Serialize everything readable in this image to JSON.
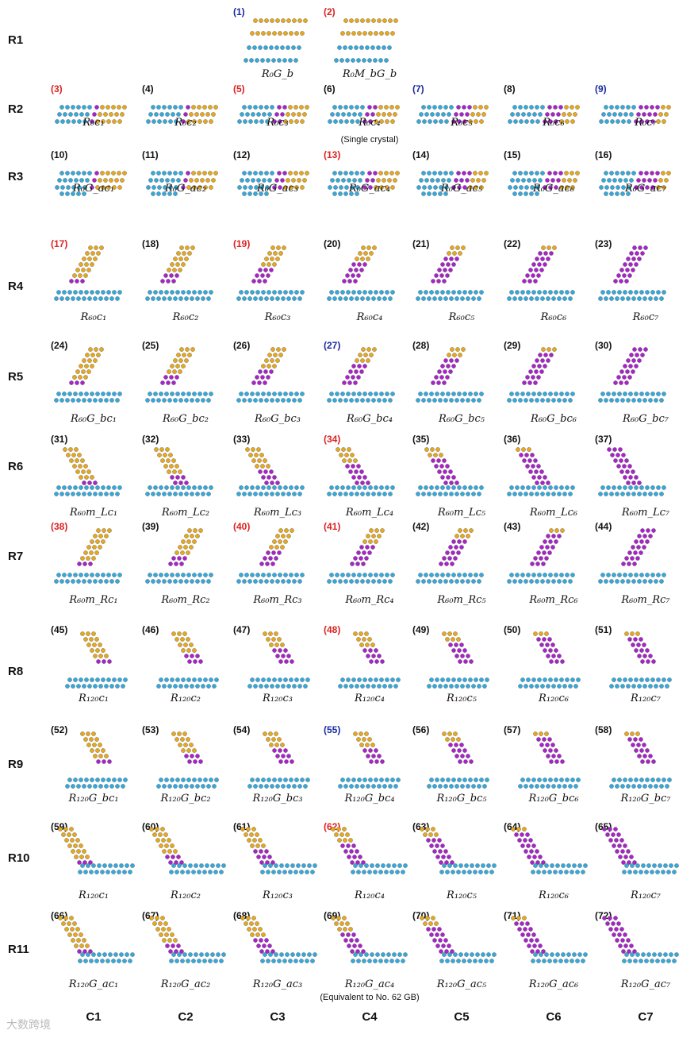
{
  "colors": {
    "matrix": "#33aadd",
    "grain": "#e8a81a",
    "boundary": "#aa22cc",
    "label_red": "#dd2222",
    "label_blue": "#1a2aa0",
    "label_black": "#111111"
  },
  "rows": [
    "R1",
    "R2",
    "R3",
    "R4",
    "R5",
    "R6",
    "R7",
    "R8",
    "R9",
    "R10",
    "R11"
  ],
  "columns": [
    "C1",
    "C2",
    "C3",
    "C4",
    "C5",
    "C6",
    "C7"
  ],
  "watermark": "大数跨境",
  "notes": {
    "single_crystal": "(Single crystal)",
    "equivalent": "(Equivalent  to No. 62 GB)"
  },
  "structures": [
    {
      "n": "(1)",
      "c": "blue",
      "cap": "R₀G_b"
    },
    {
      "n": "(2)",
      "c": "red",
      "cap": "R₀M_bG_b"
    },
    {
      "n": "(3)",
      "c": "red",
      "cap": "R₀c₁"
    },
    {
      "n": "(4)",
      "c": "black",
      "cap": "R₀c₂"
    },
    {
      "n": "(5)",
      "c": "red",
      "cap": "R₀c₃"
    },
    {
      "n": "(6)",
      "c": "black",
      "cap": "R₀c₄"
    },
    {
      "n": "(7)",
      "c": "blue",
      "cap": "R₀c₅"
    },
    {
      "n": "(8)",
      "c": "black",
      "cap": "R₀c₆"
    },
    {
      "n": "(9)",
      "c": "blue",
      "cap": "R₀c₇"
    },
    {
      "n": "(10)",
      "c": "black",
      "cap": "R₀G_ac₁"
    },
    {
      "n": "(11)",
      "c": "black",
      "cap": "R₀G_ac₂"
    },
    {
      "n": "(12)",
      "c": "black",
      "cap": "R₀G_ac₃"
    },
    {
      "n": "(13)",
      "c": "red",
      "cap": "R₀G_ac₄"
    },
    {
      "n": "(14)",
      "c": "black",
      "cap": "R₀G_ac₅"
    },
    {
      "n": "(15)",
      "c": "black",
      "cap": "R₀G_ac₆"
    },
    {
      "n": "(16)",
      "c": "black",
      "cap": "R₀G_ac₇"
    },
    {
      "n": "(17)",
      "c": "red",
      "cap": "R₆₀c₁"
    },
    {
      "n": "(18)",
      "c": "black",
      "cap": "R₆₀c₂"
    },
    {
      "n": "(19)",
      "c": "red",
      "cap": "R₆₀c₃"
    },
    {
      "n": "(20)",
      "c": "black",
      "cap": "R₆₀c₄"
    },
    {
      "n": "(21)",
      "c": "black",
      "cap": "R₆₀c₅"
    },
    {
      "n": "(22)",
      "c": "black",
      "cap": "R₆₀c₆"
    },
    {
      "n": "(23)",
      "c": "black",
      "cap": "R₆₀c₇"
    },
    {
      "n": "(24)",
      "c": "black",
      "cap": "R₆₀G_bc₁"
    },
    {
      "n": "(25)",
      "c": "black",
      "cap": "R₆₀G_bc₂"
    },
    {
      "n": "(26)",
      "c": "black",
      "cap": "R₆₀G_bc₃"
    },
    {
      "n": "(27)",
      "c": "blue",
      "cap": "R₆₀G_bc₄"
    },
    {
      "n": "(28)",
      "c": "black",
      "cap": "R₆₀G_bc₅"
    },
    {
      "n": "(29)",
      "c": "black",
      "cap": "R₆₀G_bc₆"
    },
    {
      "n": "(30)",
      "c": "black",
      "cap": "R₆₀G_bc₇"
    },
    {
      "n": "(31)",
      "c": "black",
      "cap": "R₆₀m_Lc₁"
    },
    {
      "n": "(32)",
      "c": "black",
      "cap": "R₆₀m_Lc₂"
    },
    {
      "n": "(33)",
      "c": "black",
      "cap": "R₆₀m_Lc₃"
    },
    {
      "n": "(34)",
      "c": "red",
      "cap": "R₆₀m_Lc₄"
    },
    {
      "n": "(35)",
      "c": "black",
      "cap": "R₆₀m_Lc₅"
    },
    {
      "n": "(36)",
      "c": "black",
      "cap": "R₆₀m_Lc₆"
    },
    {
      "n": "(37)",
      "c": "black",
      "cap": "R₆₀m_Lc₇"
    },
    {
      "n": "(38)",
      "c": "red",
      "cap": "R₆₀m_Rc₁"
    },
    {
      "n": "(39)",
      "c": "black",
      "cap": "R₆₀m_Rc₂"
    },
    {
      "n": "(40)",
      "c": "red",
      "cap": "R₆₀m_Rc₃"
    },
    {
      "n": "(41)",
      "c": "red",
      "cap": "R₆₀m_Rc₄"
    },
    {
      "n": "(42)",
      "c": "black",
      "cap": "R₆₀m_Rc₅"
    },
    {
      "n": "(43)",
      "c": "black",
      "cap": "R₆₀m_Rc₆"
    },
    {
      "n": "(44)",
      "c": "black",
      "cap": "R₆₀m_Rc₇"
    },
    {
      "n": "(45)",
      "c": "black",
      "cap": "R₁₂₀c₁"
    },
    {
      "n": "(46)",
      "c": "black",
      "cap": "R₁₂₀c₂"
    },
    {
      "n": "(47)",
      "c": "black",
      "cap": "R₁₂₀c₃"
    },
    {
      "n": "(48)",
      "c": "red",
      "cap": "R₁₂₀c₄"
    },
    {
      "n": "(49)",
      "c": "black",
      "cap": "R₁₂₀c₅"
    },
    {
      "n": "(50)",
      "c": "black",
      "cap": "R₁₂₀c₆"
    },
    {
      "n": "(51)",
      "c": "black",
      "cap": "R₁₂₀c₇"
    },
    {
      "n": "(52)",
      "c": "black",
      "cap": "R₁₂₀G_bc₁"
    },
    {
      "n": "(53)",
      "c": "black",
      "cap": "R₁₂₀G_bc₂"
    },
    {
      "n": "(54)",
      "c": "black",
      "cap": "R₁₂₀G_bc₃"
    },
    {
      "n": "(55)",
      "c": "blue",
      "cap": "R₁₂₀G_bc₄"
    },
    {
      "n": "(56)",
      "c": "black",
      "cap": "R₁₂₀G_bc₅"
    },
    {
      "n": "(57)",
      "c": "black",
      "cap": "R₁₂₀G_bc₆"
    },
    {
      "n": "(58)",
      "c": "black",
      "cap": "R₁₂₀G_bc₇"
    },
    {
      "n": "(59)",
      "c": "black",
      "cap": "R₁₂₀c₁"
    },
    {
      "n": "(60)",
      "c": "black",
      "cap": "R₁₂₀c₂"
    },
    {
      "n": "(61)",
      "c": "black",
      "cap": "R₁₂₀c₃"
    },
    {
      "n": "(62)",
      "c": "red",
      "cap": "R₁₂₀c₄"
    },
    {
      "n": "(63)",
      "c": "black",
      "cap": "R₁₂₀c₅"
    },
    {
      "n": "(64)",
      "c": "black",
      "cap": "R₁₂₀c₆"
    },
    {
      "n": "(65)",
      "c": "black",
      "cap": "R₁₂₀c₇"
    },
    {
      "n": "(66)",
      "c": "black",
      "cap": "R₁₂₀G_ac₁"
    },
    {
      "n": "(67)",
      "c": "black",
      "cap": "R₁₂₀G_ac₂"
    },
    {
      "n": "(68)",
      "c": "black",
      "cap": "R₁₂₀G_ac₃"
    },
    {
      "n": "(69)",
      "c": "black",
      "cap": "R₁₂₀G_ac₄"
    },
    {
      "n": "(70)",
      "c": "black",
      "cap": "R₁₂₀G_ac₅"
    },
    {
      "n": "(71)",
      "c": "black",
      "cap": "R₁₂₀G_ac₆"
    },
    {
      "n": "(72)",
      "c": "black",
      "cap": "R₁₂₀G_ac₇"
    }
  ]
}
